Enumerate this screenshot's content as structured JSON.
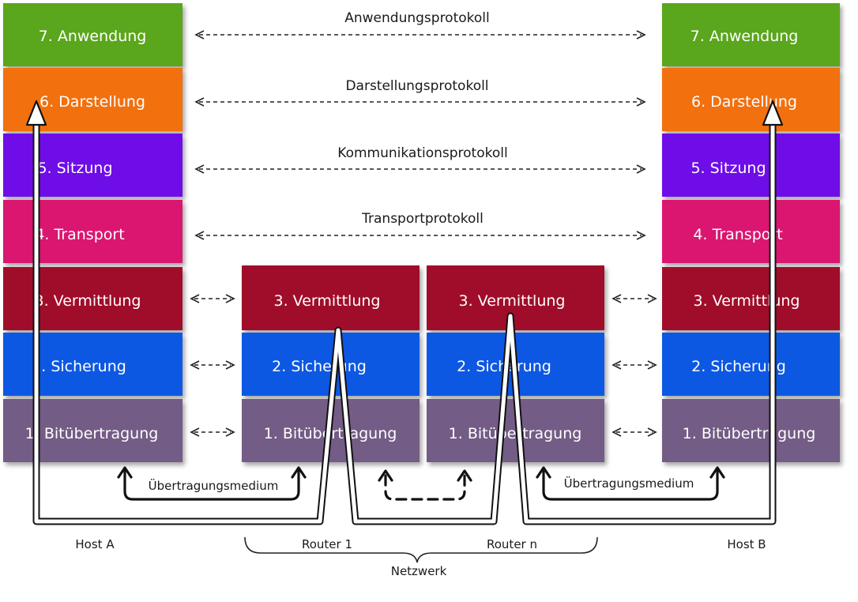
{
  "diagram": {
    "layers": [
      {
        "num": "7.",
        "name": "Anwendung",
        "color": "#5aa61e"
      },
      {
        "num": "6.",
        "name": "Darstellung",
        "color": "#f26f0f"
      },
      {
        "num": "5.",
        "name": "Sitzung",
        "color": "#6e0fe8"
      },
      {
        "num": "4.",
        "name": "Transport",
        "color": "#da1571"
      },
      {
        "num": "3.",
        "name": "Vermittlung",
        "color": "#a00c2c"
      },
      {
        "num": "2.",
        "name": "Sicherung",
        "color": "#0a58e3"
      },
      {
        "num": "1.",
        "name": "Bitübertragung",
        "color": "#735b85"
      }
    ],
    "labels": {
      "host_a_layer7": "7. Anwendung",
      "host_a_layer6": "6. Darstellung",
      "host_a_layer5": "5. Sitzung",
      "host_a_layer4": "4. Transport",
      "host_a_layer3": "3. Vermittlung",
      "host_a_layer2": "2. Sicherung",
      "host_a_layer1": "1. Bitübertragung",
      "host_b_layer7": "7. Anwendung",
      "host_b_layer6": "6. Darstellung",
      "host_b_layer5": "5. Sitzung",
      "host_b_layer4": "4. Transport",
      "host_b_layer3": "3. Vermittlung",
      "host_b_layer2": "2. Sicherung",
      "host_b_layer1": "1. Bitübertragung",
      "router1_layer3": "3. Vermittlung",
      "router1_layer2": "2. Sicherung",
      "router1_layer1": "1. Bitübertragung",
      "routern_layer3": "3. Vermittlung",
      "routern_layer2": "2. Sicherung",
      "routern_layer1": "1. Bitübertragung"
    },
    "protocols": {
      "application": "Anwendungsprotokoll",
      "presentation": "Darstellungsprotokoll",
      "session": "Kommunikationsprotokoll",
      "transport": "Transportprotokoll"
    },
    "medium_labels": {
      "left": "Übertragungsmedium",
      "right": "Übertragungsmedium"
    },
    "captions": {
      "host_a": "Host A",
      "router_1": "Router 1",
      "router_n": "Router n",
      "host_b": "Host B",
      "network": "Netzwerk"
    }
  }
}
